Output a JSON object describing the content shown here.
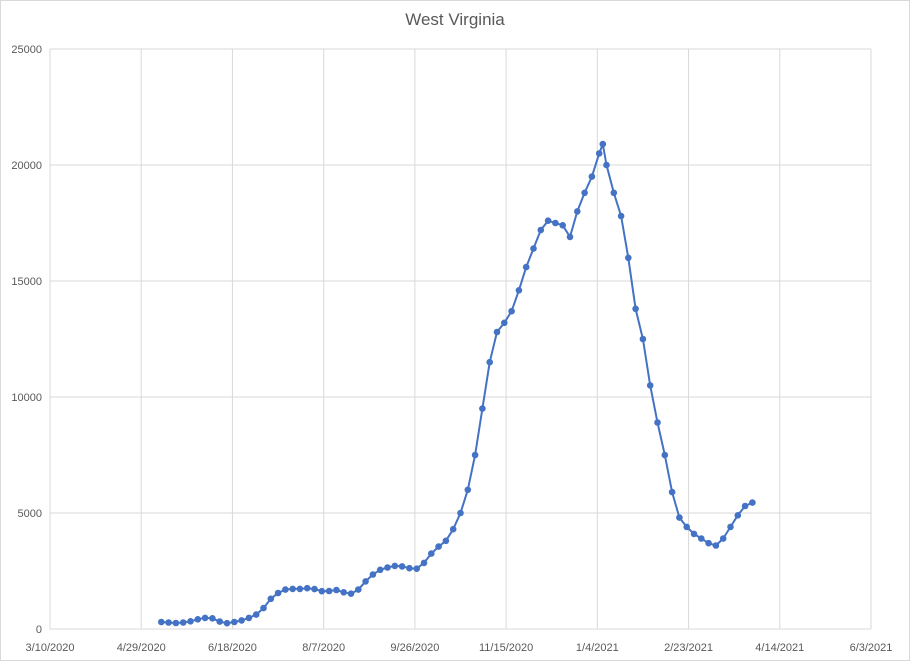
{
  "chart_data": {
    "type": "line",
    "title": "West Virginia",
    "xlabel": "",
    "ylabel": "",
    "x_ticks": [
      "3/10/2020",
      "4/29/2020",
      "6/18/2020",
      "8/7/2020",
      "9/26/2020",
      "11/15/2020",
      "1/4/2021",
      "2/23/2021",
      "4/14/2021",
      "6/3/2021"
    ],
    "y_ticks": [
      "0",
      "5000",
      "10000",
      "15000",
      "20000",
      "25000"
    ],
    "xlim": [
      "3/10/2020",
      "6/3/2021"
    ],
    "ylim": [
      0,
      25000
    ],
    "grid": true,
    "legend": "none",
    "series_color": "#4472c4",
    "x": [
      "5/10/2020",
      "5/14/2020",
      "5/18/2020",
      "5/22/2020",
      "5/26/2020",
      "5/30/2020",
      "6/3/2020",
      "6/7/2020",
      "6/11/2020",
      "6/15/2020",
      "6/19/2020",
      "6/23/2020",
      "6/27/2020",
      "7/1/2020",
      "7/5/2020",
      "7/9/2020",
      "7/13/2020",
      "7/17/2020",
      "7/21/2020",
      "7/25/2020",
      "7/29/2020",
      "8/2/2020",
      "8/6/2020",
      "8/10/2020",
      "8/14/2020",
      "8/18/2020",
      "8/22/2020",
      "8/26/2020",
      "8/30/2020",
      "9/3/2020",
      "9/7/2020",
      "9/11/2020",
      "9/15/2020",
      "9/19/2020",
      "9/23/2020",
      "9/27/2020",
      "10/1/2020",
      "10/5/2020",
      "10/9/2020",
      "10/13/2020",
      "10/17/2020",
      "10/21/2020",
      "10/25/2020",
      "10/29/2020",
      "11/2/2020",
      "11/6/2020",
      "11/10/2020",
      "11/14/2020",
      "11/18/2020",
      "11/22/2020",
      "11/26/2020",
      "11/30/2020",
      "12/4/2020",
      "12/8/2020",
      "12/12/2020",
      "12/16/2020",
      "12/20/2020",
      "12/24/2020",
      "12/28/2020",
      "1/1/2021",
      "1/5/2021",
      "1/7/2021",
      "1/9/2021",
      "1/13/2021",
      "1/17/2021",
      "1/21/2021",
      "1/25/2021",
      "1/29/2021",
      "2/2/2021",
      "2/6/2021",
      "2/10/2021",
      "2/14/2021",
      "2/18/2021",
      "2/22/2021",
      "2/26/2021",
      "3/2/2021",
      "3/6/2021",
      "3/10/2021",
      "3/14/2021",
      "3/18/2021",
      "3/22/2021",
      "3/26/2021",
      "3/30/2021"
    ],
    "series": [
      {
        "values": [
          300,
          280,
          260,
          280,
          330,
          420,
          480,
          460,
          320,
          250,
          300,
          370,
          480,
          620,
          900,
          1300,
          1550,
          1700,
          1730,
          1730,
          1760,
          1720,
          1630,
          1640,
          1680,
          1580,
          1520,
          1700,
          2050,
          2350,
          2550,
          2650,
          2720,
          2700,
          2620,
          2600,
          2850,
          3250,
          3550,
          3800,
          4300,
          5000,
          6000,
          7500,
          9500,
          11500,
          12800,
          13200,
          13700,
          14600,
          15600,
          16400,
          17200,
          17600,
          17500,
          17400,
          16900,
          18000,
          18800,
          19500,
          20500,
          20900,
          20000,
          18800,
          17800,
          16000,
          13800,
          12500,
          10500,
          8900,
          7500,
          5900,
          4800,
          4400,
          4100,
          3900,
          3700,
          3600,
          3900,
          4400,
          4900,
          5300,
          5450
        ]
      }
    ]
  }
}
